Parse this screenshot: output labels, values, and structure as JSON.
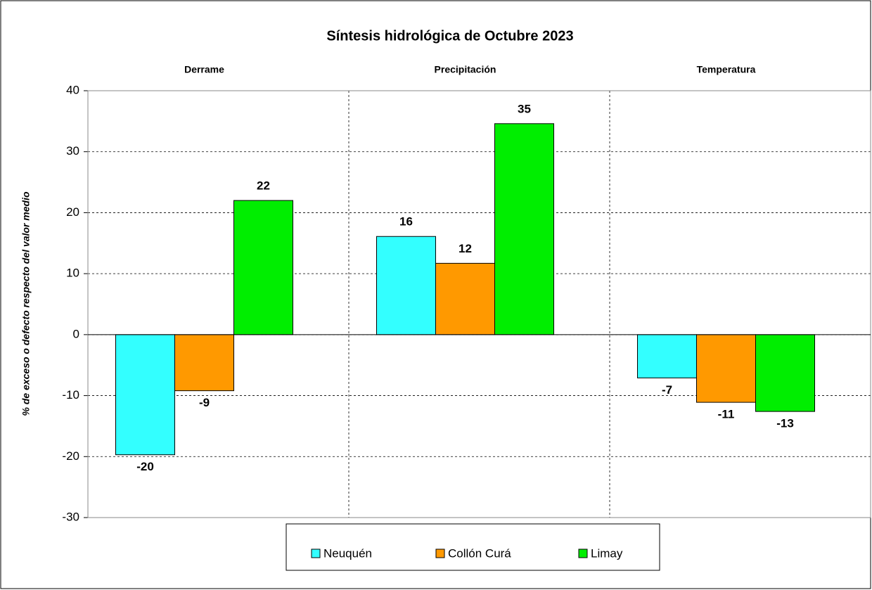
{
  "chart_data": {
    "type": "bar",
    "title": "Síntesis hidrológica de Octubre 2023",
    "y_label": "% de exceso o defecto respecto del valor medio",
    "categories": [
      "Derrame",
      "Precipitación",
      "Temperatura"
    ],
    "series": [
      {
        "name": "Neuquén",
        "color": "#33ffff",
        "label_color": "#000000",
        "values": [
          -19.7,
          16.1,
          -7.1
        ],
        "value_labels": [
          "-20",
          "16",
          "-7"
        ]
      },
      {
        "name": "Collón Curá",
        "color": "#ff9900",
        "label_color": "#1e4d1e",
        "values": [
          -9.2,
          11.7,
          -11.1
        ],
        "value_labels": [
          "-9",
          "12",
          "-11"
        ]
      },
      {
        "name": "Limay",
        "color": "#00ee00",
        "label_color": "#000000",
        "values": [
          22,
          34.6,
          -12.6
        ],
        "value_labels": [
          "22",
          "35",
          "-13"
        ]
      }
    ],
    "ylim": [
      -30,
      40
    ],
    "yticks": [
      -30,
      -20,
      -10,
      0,
      10,
      20,
      30,
      40
    ],
    "grid": true,
    "legend": "bottom"
  }
}
